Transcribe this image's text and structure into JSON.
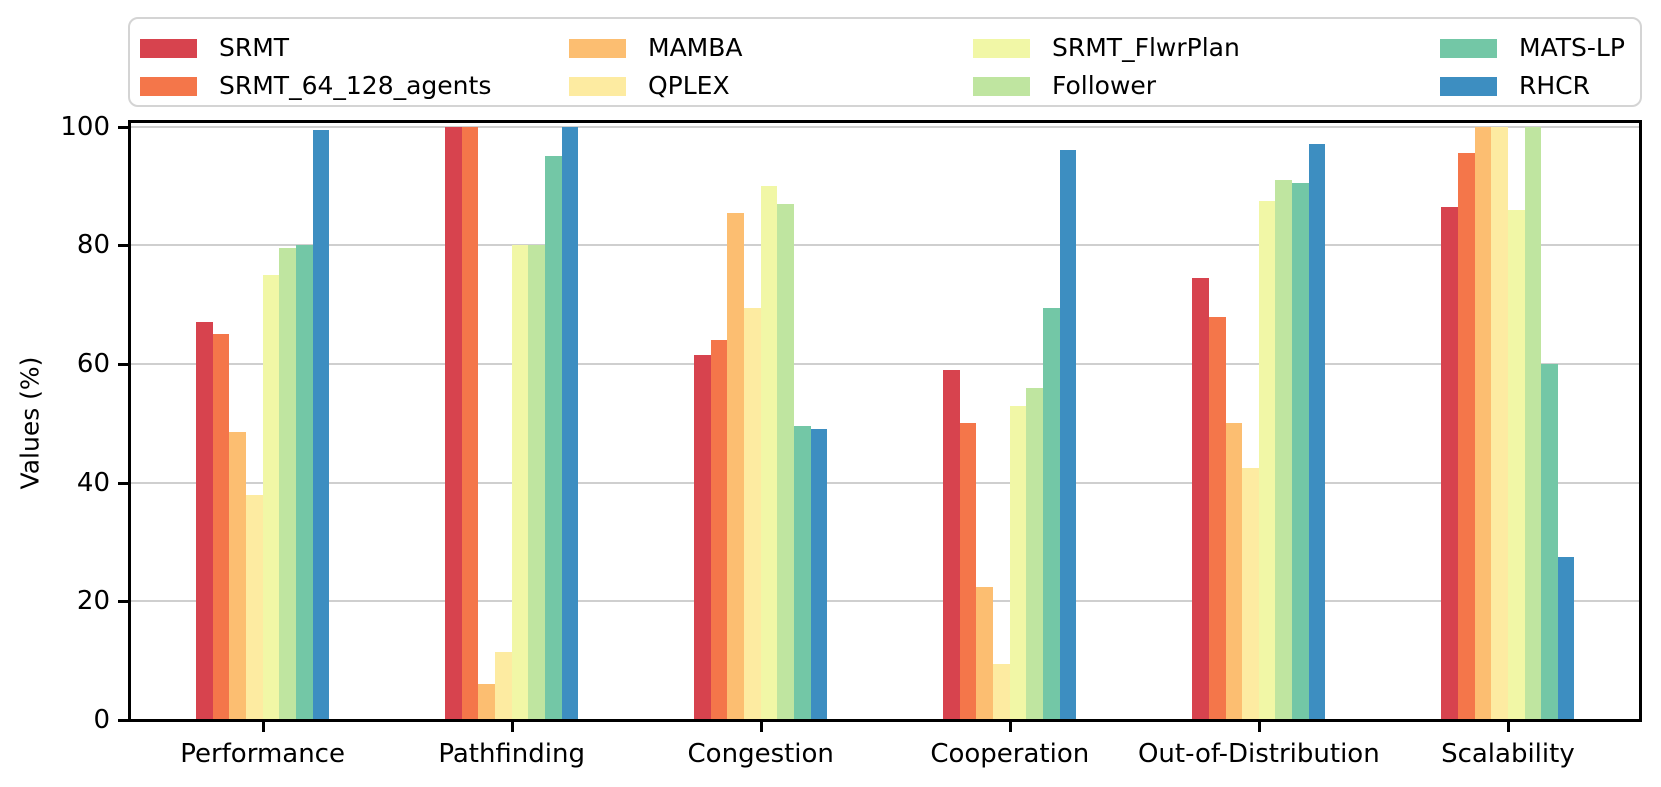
{
  "chart_data": {
    "type": "bar",
    "title": "",
    "xlabel": "",
    "ylabel": "Values (%)",
    "ylim": [
      0,
      101
    ],
    "yticks": [
      "0",
      "20",
      "40",
      "60",
      "80",
      "100"
    ],
    "grid": "horizontal",
    "legend_position": "top, 4 columns, 2 rows",
    "categories": [
      "Performance",
      "Pathfinding",
      "Congestion",
      "Cooperation",
      "Out-of-Distribution",
      "Scalability"
    ],
    "series": [
      {
        "name": "SRMT",
        "color": "#d7434e",
        "values": [
          67,
          100,
          61.5,
          59,
          74.5,
          86.5
        ]
      },
      {
        "name": "SRMT_64_128_agents",
        "color": "#f4764a",
        "values": [
          65,
          100,
          64,
          50,
          68,
          95.5
        ]
      },
      {
        "name": "MAMBA",
        "color": "#fcbe71",
        "values": [
          48.5,
          6,
          85.5,
          22.5,
          50,
          100
        ]
      },
      {
        "name": "QPLEX",
        "color": "#fdeba1",
        "values": [
          38,
          11.5,
          69.5,
          9.5,
          42.5,
          100
        ]
      },
      {
        "name": "SRMT_FlwrPlan",
        "color": "#f1f7a6",
        "values": [
          75,
          80,
          90,
          53,
          87.5,
          86
        ]
      },
      {
        "name": "Follower",
        "color": "#bfe5a0",
        "values": [
          79.5,
          80,
          87,
          56,
          91,
          100
        ]
      },
      {
        "name": "MATS-LP",
        "color": "#73c7a6",
        "values": [
          80,
          95,
          49.5,
          69.5,
          90.5,
          60
        ]
      },
      {
        "name": "RHCR",
        "color": "#3d8ec1",
        "values": [
          99.5,
          100,
          49,
          96,
          97,
          27.5
        ]
      }
    ]
  }
}
